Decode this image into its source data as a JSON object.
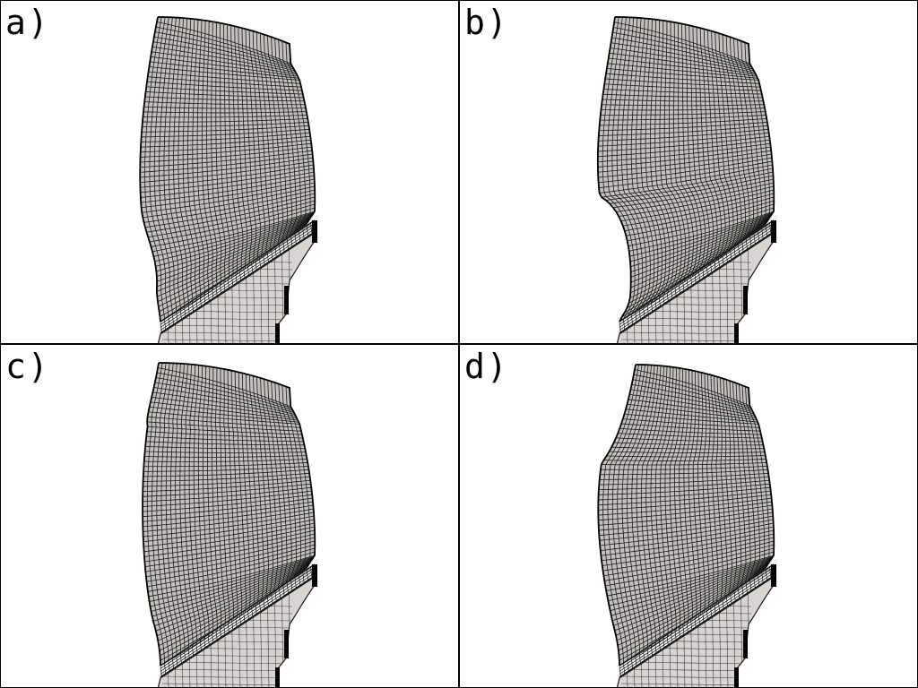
{
  "figure": {
    "panels": [
      {
        "label": "a)",
        "variant": "a"
      },
      {
        "label": "b)",
        "variant": "b"
      },
      {
        "label": "c)",
        "variant": "c"
      },
      {
        "label": "d)",
        "variant": "d"
      }
    ],
    "colors": {
      "background": "#ffffff",
      "border": "#000000",
      "mesh_fill": "#c4c1bc",
      "mesh_lines": "#1a1a1a",
      "root_fill": "#d8d5d0"
    }
  }
}
